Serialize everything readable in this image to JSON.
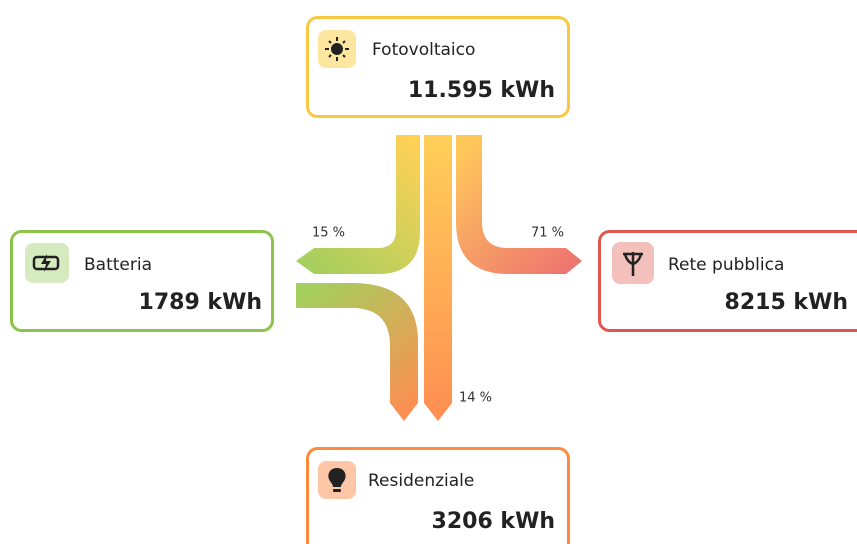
{
  "nodes": [
    {
      "label": "Fotovoltaico",
      "value": "11.595 kWh"
    },
    {
      "label": "Batteria",
      "value": "1789 kWh"
    },
    {
      "label": "Rete pubblica",
      "value": "8215 kWh"
    },
    {
      "label": "Residenziale",
      "value": "3206 kWh"
    }
  ],
  "flows": [
    {
      "label": "15 %"
    },
    {
      "label": "71 %"
    },
    {
      "label": "14 %"
    }
  ]
}
